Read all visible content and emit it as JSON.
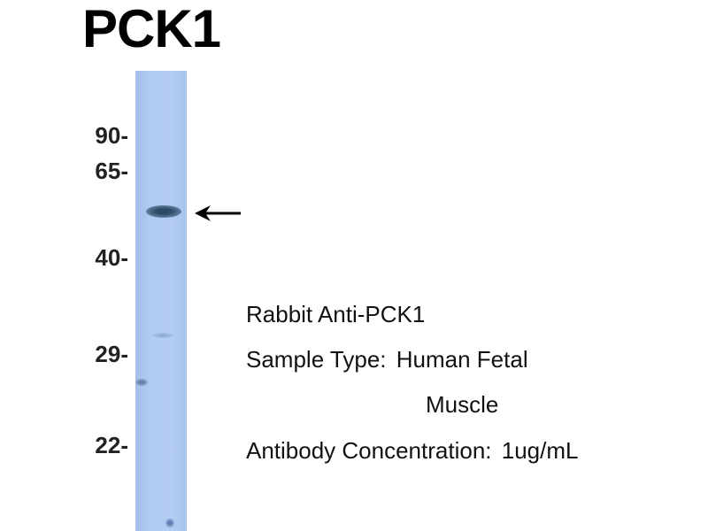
{
  "title": "PCK1",
  "markers": [
    "90-",
    "65-",
    "40-",
    "29-",
    "22-"
  ],
  "info": {
    "antibody": "Rabbit Anti-PCK1",
    "sample_type_label": "Sample Type:",
    "sample_type_value": "Human Fetal",
    "sample_type_value_2": "Muscle",
    "concentration_label": "Antibody Concentration:",
    "concentration_value": "1ug/mL"
  },
  "colors": {
    "lane": "#b1caf1",
    "band": "#3a5570"
  }
}
